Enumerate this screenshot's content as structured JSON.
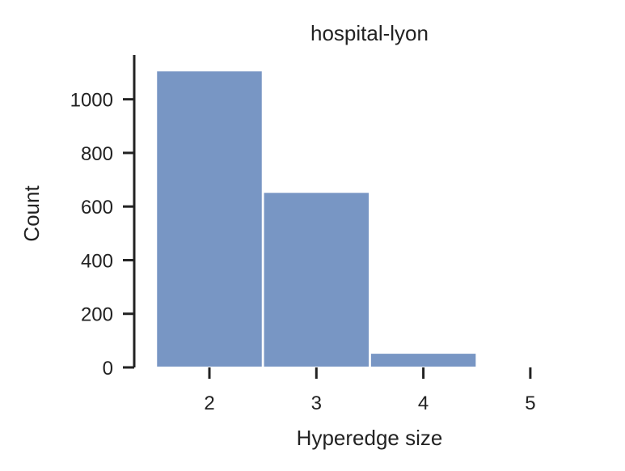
{
  "chart_data": {
    "type": "bar",
    "title": "hospital-lyon",
    "xlabel": "Hyperedge size",
    "ylabel": "Count",
    "categories": [
      "2",
      "3",
      "4",
      "5"
    ],
    "values": [
      1107,
      654,
      54,
      0
    ],
    "ylim": [
      0,
      1165
    ],
    "yticks": [
      0,
      200,
      400,
      600,
      800,
      1000
    ],
    "xticks": [
      "2",
      "3",
      "4",
      "5"
    ],
    "grid": false,
    "bar_color": "#7896c4",
    "axis_color": "#222222"
  }
}
